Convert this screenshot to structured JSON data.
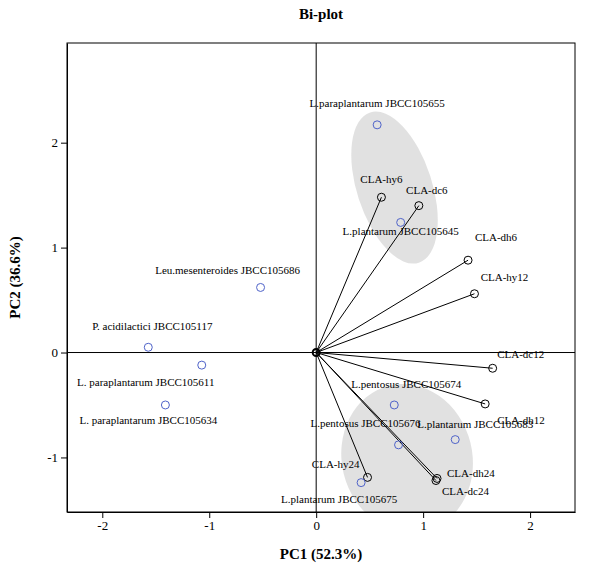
{
  "chart_data": {
    "type": "biplot",
    "title": "Bi-plot",
    "x_label": "PC1 (52.3%)",
    "y_label": "PC2 (36.6%)",
    "xlim": [
      -2.33,
      2.42
    ],
    "ylim": [
      -1.52,
      2.95
    ],
    "xticks": [
      -2,
      -1,
      0,
      1,
      2
    ],
    "yticks": [
      -1,
      0,
      1,
      2
    ],
    "points": {
      "labels": [
        "L.paraplantarum JBCC105655",
        "L.plantarum JBCC105645",
        "Leu.mesenteroides JBCC105686",
        "P. acidilactici JBCC105117",
        "L. paraplantarum JBCC105611",
        "L. paraplantarum JBCC105634",
        "L.pentosus JBCC105674",
        "L.pentosus JBCC105676",
        "L.plantarum JBCC105683",
        "L.plantarum JBCC105675"
      ],
      "x": [
        0.57,
        0.79,
        -0.52,
        -1.57,
        -1.07,
        -1.41,
        0.73,
        0.77,
        1.3,
        0.42
      ],
      "y": [
        2.17,
        1.24,
        0.62,
        0.05,
        -0.12,
        -0.5,
        -0.5,
        -0.88,
        -0.83,
        -1.24
      ],
      "color": "#4f63c9",
      "marker": "open-circle"
    },
    "loadings": {
      "labels": [
        "CLA-hy6",
        "CLA-dc6",
        "CLA-dh6",
        "CLA-hy12",
        "CLA-dc12",
        "CLA-dh12",
        "CLA-dh24",
        "CLA-dc24",
        "CLA-hy24"
      ],
      "x": [
        0.61,
        0.96,
        1.42,
        1.48,
        1.65,
        1.58,
        1.13,
        1.12,
        0.48
      ],
      "y": [
        1.48,
        1.4,
        0.88,
        0.56,
        -0.15,
        -0.49,
        -1.2,
        -1.22,
        -1.19
      ],
      "color": "#000000",
      "marker": "open-circle"
    },
    "clusters": [
      [
        "L.paraplantarum JBCC105655",
        "L.plantarum JBCC105645",
        "CLA-hy6",
        "CLA-dc6"
      ],
      [
        "L.pentosus JBCC105674",
        "L.pentosus JBCC105676",
        "L.plantarum JBCC105683",
        "L.plantarum JBCC105675",
        "CLA-hy24",
        "CLA-dh24",
        "CLA-dc24"
      ]
    ]
  }
}
